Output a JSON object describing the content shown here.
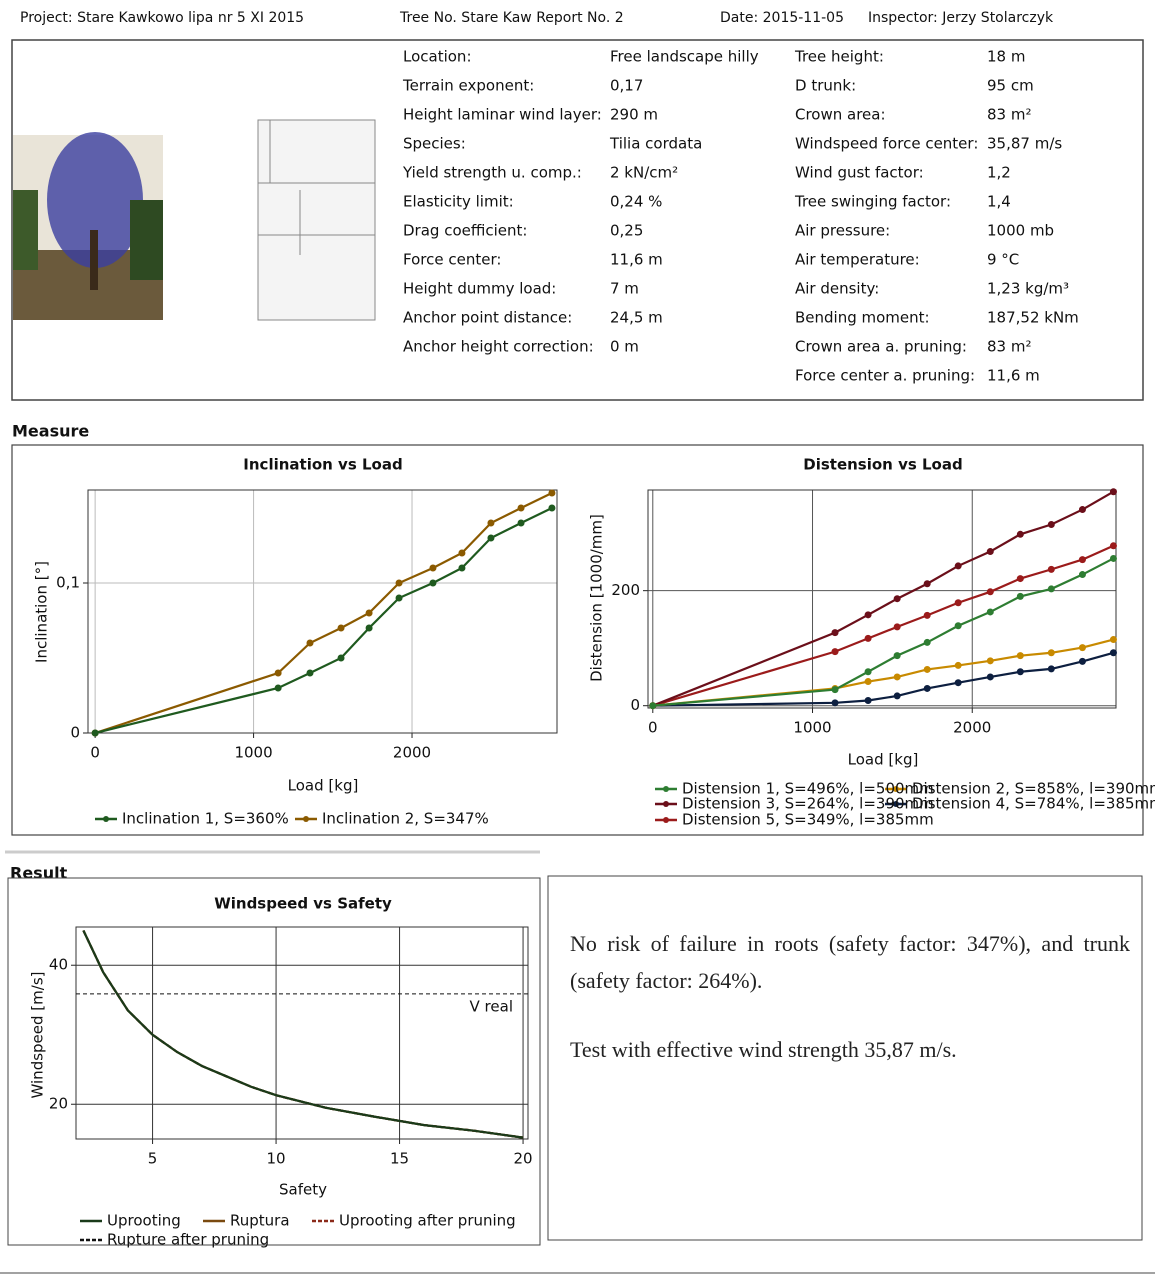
{
  "header": {
    "project": "Project: Stare Kawkowo lipa nr 5 XI 2015",
    "tree": "Tree No. Stare Kaw Report No. 2",
    "date": "Date: 2015-11-05",
    "inspector": "Inspector: Jerzy Stolarczyk"
  },
  "parameters": {
    "left": [
      [
        "Location:",
        "Free landscape hilly"
      ],
      [
        "Terrain exponent:",
        "0,17"
      ],
      [
        "Height laminar wind layer:",
        "290 m"
      ],
      [
        "Species:",
        "Tilia cordata"
      ],
      [
        "Yield strength u. comp.:",
        "2 kN/cm²"
      ],
      [
        "Elasticity limit:",
        "0,24 %"
      ],
      [
        "Drag coefficient:",
        "0,25"
      ],
      [
        "Force center:",
        "11,6 m"
      ],
      [
        "Height dummy load:",
        "7 m"
      ],
      [
        "Anchor point distance:",
        "24,5 m"
      ],
      [
        "Anchor height correction:",
        "0 m"
      ]
    ],
    "right": [
      [
        "Tree height:",
        "18 m"
      ],
      [
        "D trunk:",
        "95 cm"
      ],
      [
        "Crown area:",
        "83 m²"
      ],
      [
        "Windspeed force center:",
        "35,87 m/s"
      ],
      [
        "Wind gust factor:",
        "1,2"
      ],
      [
        "Tree swinging factor:",
        "1,4"
      ],
      [
        "Air pressure:",
        "1000 mb"
      ],
      [
        "Air temperature:",
        "9 °C"
      ],
      [
        "Air density:",
        "1,23 kg/m³"
      ],
      [
        "Bending moment:",
        "187,52 kNm"
      ],
      [
        "Crown area a. pruning:",
        "83 m²"
      ],
      [
        "Force center a. pruning:",
        "11,6 m"
      ]
    ]
  },
  "measure_title": "Measure",
  "result_title": "Result",
  "result_text": [
    "No risk of failure in roots (safety factor: 347%), and trunk (safety factor: 264%).",
    "Test with effective wind strength 35,87 m/s."
  ],
  "chart_data": [
    {
      "type": "line",
      "title": "Inclination vs Load",
      "x_label": "Load [kg]",
      "y_label": "Inclination [°]",
      "markers": true,
      "xlim": [
        -45,
        2915
      ],
      "ylim": [
        0,
        0.162
      ],
      "xticks": [
        0,
        1000,
        2000
      ],
      "yticks": [
        0,
        {
          "value": 0.1,
          "label": "0,1"
        }
      ],
      "grid": true,
      "x": [
        0,
        1155,
        1356,
        1552,
        1729,
        1918,
        2132,
        2315,
        2498,
        2688,
        2883
      ],
      "series": [
        {
          "name": "Inclination 1, S=360%",
          "color": "#1f5a1f",
          "values": [
            0,
            0.03,
            0.04,
            0.05,
            0.07,
            0.09,
            0.1,
            0.11,
            0.13,
            0.14,
            0.15
          ]
        },
        {
          "name": "Inclination 2, S=347%",
          "color": "#8b5a00",
          "values": [
            0,
            0.04,
            0.06,
            0.07,
            0.08,
            0.1,
            0.11,
            0.12,
            0.14,
            0.15,
            0.16
          ]
        }
      ]
    },
    {
      "type": "line",
      "title": "Distension vs Load",
      "x_label": "Load [kg]",
      "y_label": "Distension [1000/mm]",
      "markers": true,
      "xlim": [
        -30,
        2900
      ],
      "ylim": [
        -4,
        375
      ],
      "xticks": [
        0,
        1000,
        2000
      ],
      "yticks": [
        0,
        200
      ],
      "grid": true,
      "x": [
        0,
        1141,
        1348,
        1530,
        1718,
        1912,
        2113,
        2301,
        2495,
        2690,
        2884
      ],
      "series": [
        {
          "name": "Distension 1, S=496%, l=500mm",
          "color": "#2e7d32",
          "values": [
            0,
            28,
            59,
            87,
            110,
            139,
            163,
            190,
            203,
            228,
            256
          ]
        },
        {
          "name": "Distension 2, S=858%, l=390mm",
          "color": "#c88a00",
          "values": [
            0,
            30,
            42,
            50,
            63,
            70,
            78,
            87,
            92,
            101,
            115
          ]
        },
        {
          "name": "Distension 3, S=264%, l=390mm",
          "color": "#6b0f1a",
          "values": [
            0,
            127,
            158,
            186,
            212,
            243,
            268,
            298,
            315,
            341,
            372
          ]
        },
        {
          "name": "Distension 4, S=784%, l=385mm",
          "color": "#0d1f40",
          "values": [
            0,
            5,
            9,
            17,
            30,
            40,
            50,
            59,
            64,
            77,
            92
          ]
        },
        {
          "name": "Distension 5, S=349%, l=385mm",
          "color": "#9b1b1b",
          "values": [
            0,
            94,
            117,
            137,
            157,
            179,
            198,
            221,
            237,
            254,
            278
          ]
        }
      ]
    },
    {
      "type": "line",
      "title": "Windspeed vs Safety",
      "x_label": "Safety",
      "y_label": "Windspeed [m/s]",
      "markers": false,
      "xlim": [
        1.9,
        20.2
      ],
      "ylim": [
        15,
        45.5
      ],
      "xticks": [
        5,
        10,
        15,
        20
      ],
      "yticks": [
        20,
        40
      ],
      "grid": true,
      "v_real": 35.87,
      "v_real_label": "V real",
      "x": [
        2.2,
        3,
        4,
        5,
        6,
        7,
        8,
        9,
        10,
        12,
        14,
        16,
        18,
        20
      ],
      "series": [
        {
          "name": "Uprooting",
          "color": "#1a3a1a",
          "dash": false,
          "values": [
            45,
            39,
            33.5,
            30,
            27.5,
            25.5,
            24,
            22.5,
            21.3,
            19.5,
            18.2,
            17,
            16.2,
            15.2
          ]
        },
        {
          "name": "Ruptura",
          "color": "#7a4a10",
          "dash": false,
          "values": [
            45,
            39,
            33.5,
            30,
            27.5,
            25.5,
            24,
            22.5,
            21.3,
            19.5,
            18.2,
            17,
            16.2,
            15.2
          ]
        },
        {
          "name": "Uprooting after pruning",
          "color": "#8b2a1a",
          "dash": true,
          "values": [
            45,
            39,
            33.5,
            30,
            27.5,
            25.5,
            24,
            22.5,
            21.3,
            19.5,
            18.2,
            17,
            16.2,
            15.2
          ]
        },
        {
          "name": "Rupture after pruning",
          "color": "#111111",
          "dash": true,
          "values": [
            45,
            39,
            33.5,
            30,
            27.5,
            25.5,
            24,
            22.5,
            21.3,
            19.5,
            18.2,
            17,
            16.2,
            15.2
          ]
        }
      ]
    }
  ]
}
